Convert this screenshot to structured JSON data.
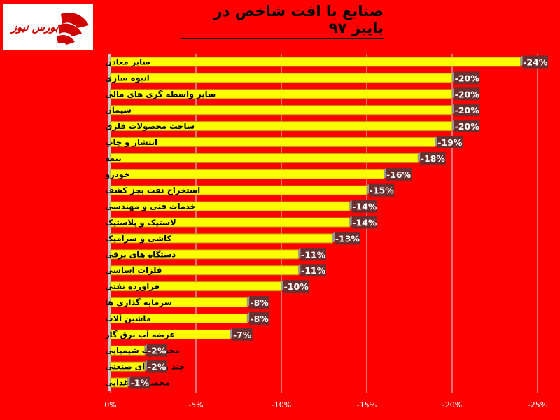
{
  "title": "صنایع با افت شاخص در پاییز ۹۷",
  "logo": {
    "text": "بورس نیوز",
    "icon": "bourse-news-logo-icon"
  },
  "colors": {
    "background": "#ff0000",
    "bar": "#ffff00",
    "bar_edge": "#b8a200",
    "label_box": "#6b3030",
    "label_text": "#ffffff",
    "grid": "#e0e0e0"
  },
  "chart_data": {
    "type": "bar",
    "orientation": "horizontal",
    "title": "صنایع با افت شاخص در پاییز ۹۷",
    "categories": [
      "سایر معادن",
      "انبوه سازی",
      "سایر واسطه گری های مالی",
      "سیمان",
      "ساخت محصولات فلزی",
      "انتشار و چاپ",
      "بیمه",
      "خودرو",
      "استخراج نفت بجز کشف",
      "خدمات فنی و مهندسی",
      "لاستیک و پلاستیک",
      "کاشی و سرامیک",
      "دستگاه های برقی",
      "فلزات اساسی",
      "فراورده نفتی",
      "سرمایه گذاری ها",
      "ماشین آلات",
      "عرضه آب برق گاز",
      "محصولات شیمیایی",
      "چند رشته ای صنعتی",
      "محصولات غذایی"
    ],
    "values": [
      -24,
      -20,
      -20,
      -20,
      -20,
      -19,
      -18,
      -16,
      -15,
      -14,
      -14,
      -13,
      -11,
      -11,
      -10,
      -8,
      -8,
      -7,
      -2,
      -2,
      -1
    ],
    "data_labels": [
      "-24%",
      "-20%",
      "-20%",
      "-20%",
      "-20%",
      "-19%",
      "-18%",
      "-16%",
      "-15%",
      "-14%",
      "-14%",
      "-13%",
      "-11%",
      "-11%",
      "-10%",
      "-8%",
      "-8%",
      "-7%",
      "-2%",
      "-2%",
      "-1%"
    ],
    "x_ticks": [
      0,
      -5,
      -10,
      -15,
      -20,
      -25
    ],
    "x_tick_labels": [
      "0%",
      "-5%",
      "-10%",
      "-15%",
      "-20%",
      "-25%"
    ],
    "xlim": [
      0,
      -25
    ],
    "grid": true,
    "legend": "none"
  }
}
